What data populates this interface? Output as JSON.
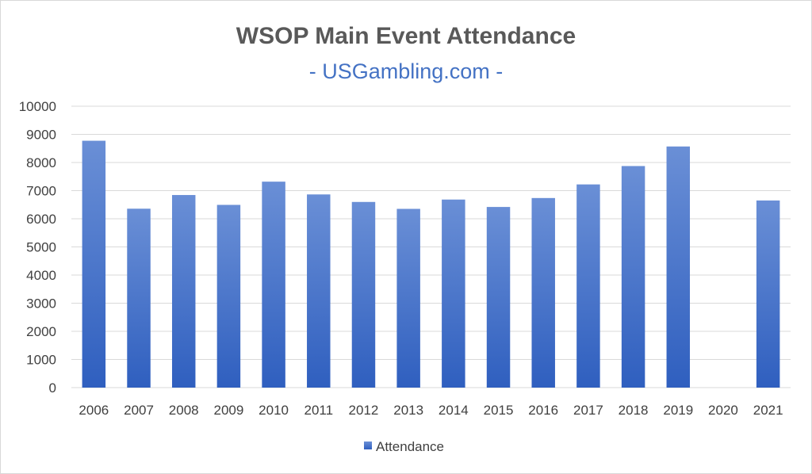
{
  "chart_data": {
    "type": "bar",
    "title": "WSOP Main Event Attendance",
    "subtitle": "- USGambling.com -",
    "xlabel": "",
    "ylabel": "",
    "categories": [
      "2006",
      "2007",
      "2008",
      "2009",
      "2010",
      "2011",
      "2012",
      "2013",
      "2014",
      "2015",
      "2016",
      "2017",
      "2018",
      "2019",
      "2020",
      "2021"
    ],
    "series": [
      {
        "name": "Attendance",
        "values": [
          8773,
          6358,
          6844,
          6494,
          7319,
          6865,
          6598,
          6352,
          6683,
          6420,
          6737,
          7221,
          7874,
          8569,
          0,
          6650
        ]
      }
    ],
    "ylim": [
      0,
      10000
    ],
    "yticks": [
      0,
      1000,
      2000,
      3000,
      4000,
      5000,
      6000,
      7000,
      8000,
      9000,
      10000
    ],
    "grid": true,
    "legend": "bottom",
    "colors": {
      "bar_top": "#6a8fd6",
      "bar_bottom": "#2f5fbf",
      "gridline": "#d9d9d9",
      "title": "#595959",
      "subtitle": "#4472c4"
    }
  }
}
